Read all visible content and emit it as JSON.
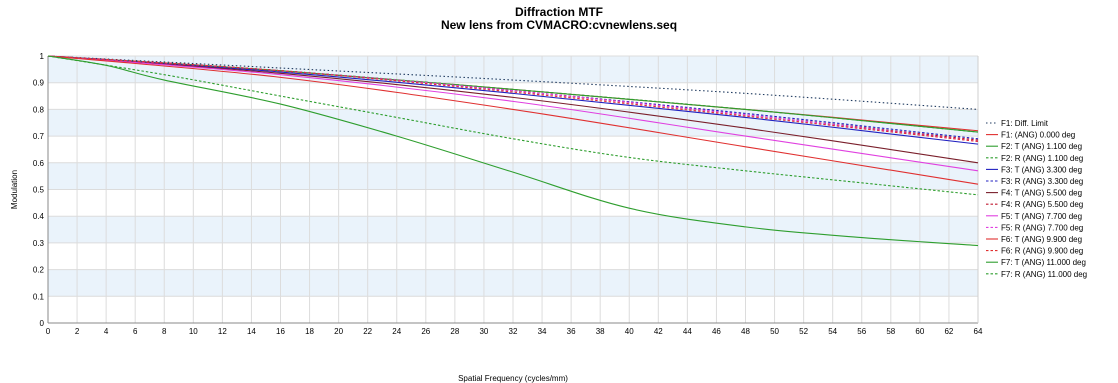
{
  "chart_data": {
    "type": "line",
    "title": "Diffraction MTF",
    "subtitle": "New lens from CVMACRO:cvnewlens.seq",
    "xlabel": "Spatial Frequency (cycles/mm)",
    "ylabel": "Modulation",
    "xlim": [
      0,
      64
    ],
    "ylim": [
      0,
      1
    ],
    "x_ticks": [
      0,
      2,
      4,
      6,
      8,
      10,
      12,
      14,
      16,
      18,
      20,
      22,
      24,
      26,
      28,
      30,
      32,
      34,
      36,
      38,
      40,
      42,
      44,
      46,
      48,
      50,
      52,
      54,
      56,
      58,
      60,
      62,
      64
    ],
    "y_ticks": [
      0,
      0.1,
      0.2,
      0.3,
      0.4,
      0.5,
      0.6,
      0.7,
      0.8,
      0.9,
      1
    ],
    "grid": true,
    "alternating_bands": true,
    "band_color": "#eaf3fb",
    "legend_position": "right",
    "series": [
      {
        "name": "F1: Diff. Limit",
        "color": "#1f3a5f",
        "dash": "dot",
        "x": [
          0,
          16,
          32,
          48,
          64
        ],
        "values": [
          1.0,
          0.955,
          0.91,
          0.86,
          0.8
        ]
      },
      {
        "name": "F1: (ANG) 0.000 deg",
        "color": "#e03030",
        "dash": "solid",
        "x": [
          0,
          16,
          32,
          48,
          64
        ],
        "values": [
          1.0,
          0.945,
          0.875,
          0.8,
          0.72
        ]
      },
      {
        "name": "F2: T (ANG) 1.100 deg",
        "color": "#2e9e2e",
        "dash": "solid",
        "x": [
          0,
          16,
          32,
          48,
          64
        ],
        "values": [
          1.0,
          0.945,
          0.875,
          0.8,
          0.715
        ]
      },
      {
        "name": "F2: R (ANG) 1.100 deg",
        "color": "#2e9e2e",
        "dash": "dash",
        "x": [
          0,
          16,
          32,
          48,
          64
        ],
        "values": [
          1.0,
          0.945,
          0.875,
          0.8,
          0.715
        ]
      },
      {
        "name": "F3: T (ANG) 3.300 deg",
        "color": "#2020c0",
        "dash": "solid",
        "x": [
          0,
          16,
          32,
          48,
          64
        ],
        "values": [
          1.0,
          0.94,
          0.86,
          0.77,
          0.67
        ]
      },
      {
        "name": "F3: R (ANG) 3.300 deg",
        "color": "#2020c0",
        "dash": "dash",
        "x": [
          0,
          16,
          32,
          48,
          64
        ],
        "values": [
          1.0,
          0.945,
          0.87,
          0.785,
          0.69
        ]
      },
      {
        "name": "F4: T (ANG) 5.500 deg",
        "color": "#7a1f2b",
        "dash": "solid",
        "x": [
          0,
          16,
          32,
          48,
          64
        ],
        "values": [
          1.0,
          0.935,
          0.845,
          0.73,
          0.6
        ]
      },
      {
        "name": "F4: R (ANG) 5.500 deg",
        "color": "#c01830",
        "dash": "dash",
        "x": [
          0,
          16,
          32,
          48,
          64
        ],
        "values": [
          1.0,
          0.945,
          0.87,
          0.78,
          0.685
        ]
      },
      {
        "name": "F5: T (ANG) 7.700 deg",
        "color": "#e040e0",
        "dash": "solid",
        "x": [
          0,
          16,
          32,
          48,
          64
        ],
        "values": [
          1.0,
          0.93,
          0.83,
          0.7,
          0.57
        ]
      },
      {
        "name": "F5: R (ANG) 7.700 deg",
        "color": "#e040e0",
        "dash": "dash",
        "x": [
          0,
          16,
          32,
          48,
          64
        ],
        "values": [
          1.0,
          0.945,
          0.87,
          0.78,
          0.68
        ]
      },
      {
        "name": "F6: T (ANG) 9.900 deg",
        "color": "#e03030",
        "dash": "solid",
        "x": [
          0,
          16,
          32,
          48,
          64
        ],
        "values": [
          1.0,
          0.92,
          0.8,
          0.66,
          0.52
        ]
      },
      {
        "name": "F6: R (ANG) 9.900 deg",
        "color": "#e03030",
        "dash": "dash",
        "x": [
          0,
          16,
          32,
          48,
          64
        ],
        "values": [
          1.0,
          0.945,
          0.865,
          0.775,
          0.68
        ]
      },
      {
        "name": "F7: T (ANG) 11.000 deg",
        "color": "#2e9e2e",
        "dash": "solid",
        "x": [
          0,
          4,
          8,
          16,
          24,
          32,
          40,
          48,
          56,
          64
        ],
        "values": [
          1.0,
          0.965,
          0.91,
          0.82,
          0.7,
          0.565,
          0.43,
          0.36,
          0.32,
          0.29
        ]
      },
      {
        "name": "F7: R (ANG) 11.000 deg",
        "color": "#2e9e2e",
        "dash": "dash",
        "x": [
          0,
          8,
          16,
          24,
          32,
          40,
          48,
          56,
          64
        ],
        "values": [
          1.0,
          0.93,
          0.85,
          0.77,
          0.69,
          0.62,
          0.57,
          0.525,
          0.48
        ]
      }
    ]
  }
}
